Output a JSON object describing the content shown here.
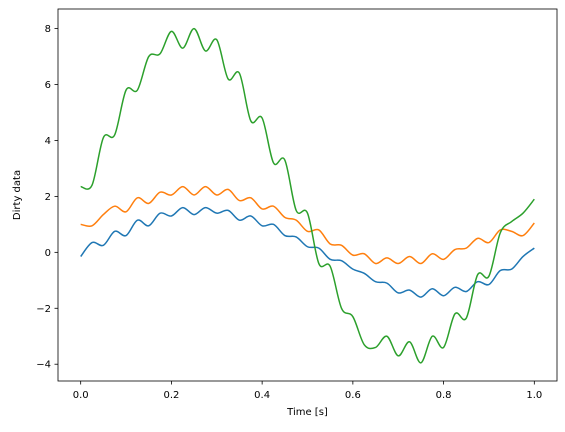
{
  "chart_data": {
    "type": "line",
    "title": "",
    "xlabel": "Time [s]",
    "ylabel": "Dirty data",
    "xlim": [
      -0.05,
      1.05
    ],
    "ylim": [
      -4.6,
      8.7
    ],
    "grid": false,
    "legend": "none",
    "xticks": [
      0.0,
      0.2,
      0.4,
      0.6,
      0.8,
      1.0
    ],
    "xtick_labels": [
      "0.0",
      "0.2",
      "0.4",
      "0.6",
      "0.8",
      "1.0"
    ],
    "yticks": [
      -4,
      -2,
      0,
      2,
      4,
      6,
      8
    ],
    "ytick_labels": [
      "−4",
      "−2",
      "0",
      "2",
      "4",
      "6",
      "8"
    ],
    "x": [
      0.0,
      0.025,
      0.05,
      0.075,
      0.1,
      0.125,
      0.15,
      0.175,
      0.2,
      0.225,
      0.25,
      0.275,
      0.3,
      0.325,
      0.35,
      0.375,
      0.4,
      0.425,
      0.45,
      0.475,
      0.5,
      0.525,
      0.55,
      0.575,
      0.6,
      0.625,
      0.65,
      0.675,
      0.7,
      0.725,
      0.75,
      0.775,
      0.8,
      0.825,
      0.85,
      0.875,
      0.9,
      0.925,
      0.95,
      0.975,
      1.0
    ],
    "series": [
      {
        "color": "#1f77b4",
        "values": [
          -0.15,
          0.35,
          0.25,
          0.75,
          0.6,
          1.15,
          0.95,
          1.4,
          1.3,
          1.6,
          1.35,
          1.6,
          1.4,
          1.5,
          1.15,
          1.3,
          0.95,
          1.0,
          0.6,
          0.55,
          0.2,
          0.15,
          -0.25,
          -0.3,
          -0.6,
          -0.75,
          -1.05,
          -1.1,
          -1.45,
          -1.35,
          -1.6,
          -1.3,
          -1.55,
          -1.25,
          -1.4,
          -1.05,
          -1.15,
          -0.65,
          -0.6,
          -0.15,
          0.15
        ]
      },
      {
        "color": "#ff7f0e",
        "values": [
          1.0,
          0.95,
          1.35,
          1.65,
          1.45,
          1.95,
          1.75,
          2.15,
          2.05,
          2.35,
          2.05,
          2.35,
          2.05,
          2.25,
          1.85,
          1.95,
          1.55,
          1.65,
          1.25,
          1.15,
          0.75,
          0.8,
          0.3,
          0.25,
          -0.1,
          -0.05,
          -0.4,
          -0.2,
          -0.4,
          -0.15,
          -0.4,
          -0.05,
          -0.25,
          0.1,
          0.15,
          0.5,
          0.35,
          0.8,
          0.75,
          0.6,
          1.05
        ]
      },
      {
        "color": "#2ca02c",
        "values": [
          2.35,
          2.4,
          4.1,
          4.2,
          5.8,
          5.8,
          7.0,
          7.1,
          7.9,
          7.3,
          8.0,
          7.2,
          7.6,
          6.2,
          6.4,
          4.7,
          4.8,
          3.2,
          3.3,
          1.5,
          1.4,
          -0.4,
          -0.5,
          -2.0,
          -2.3,
          -3.3,
          -3.4,
          -3.0,
          -3.7,
          -3.2,
          -3.95,
          -3.0,
          -3.4,
          -2.2,
          -2.35,
          -0.8,
          -0.85,
          0.7,
          1.1,
          1.4,
          1.9
        ]
      }
    ]
  }
}
